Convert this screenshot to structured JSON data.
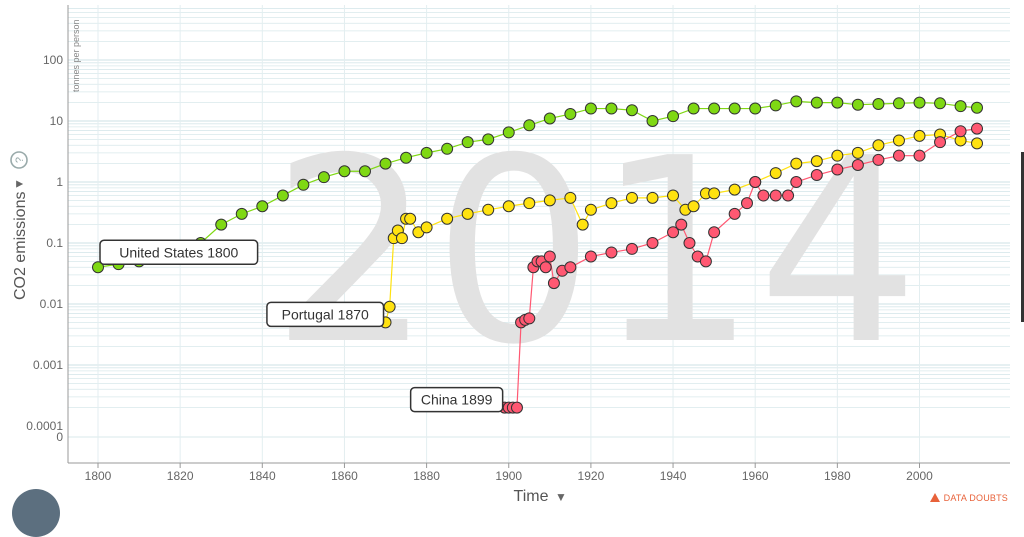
{
  "year_overlay": "2014",
  "y_axis": {
    "title": "CO2 emissions",
    "unit": "tonnes per person",
    "arrow": "▼",
    "help_icon": "question-circle-icon"
  },
  "x_axis": {
    "title": "Time",
    "arrow": "▼"
  },
  "data_doubts": "DATA DOUBTS",
  "colors": {
    "United States": "#7fd813",
    "Portugal": "#ffe210",
    "China": "#ff5872",
    "grid": "#cfe2e6",
    "axis": "#999999"
  },
  "chart_data": {
    "type": "scatter",
    "xlabel": "Time",
    "ylabel": "CO2 emissions",
    "yunit": "tonnes per person",
    "yscale": "log",
    "xlim": [
      1790,
      2018
    ],
    "x_ticks": [
      1800,
      1820,
      1840,
      1860,
      1880,
      1900,
      1920,
      1940,
      1960,
      1980,
      2000
    ],
    "y_ticks": [
      "100",
      "10",
      "1",
      "0.1",
      "0.01",
      "0.001",
      "0.0001",
      "0"
    ],
    "labels": [
      "United States 1800",
      "Portugal 1870",
      "China 1899"
    ],
    "series": [
      {
        "name": "United States",
        "color": "#7fd813",
        "points": [
          [
            1800,
            0.04
          ],
          [
            1805,
            0.045
          ],
          [
            1810,
            0.05
          ],
          [
            1815,
            0.06
          ],
          [
            1820,
            0.07
          ],
          [
            1825,
            0.1
          ],
          [
            1830,
            0.2
          ],
          [
            1835,
            0.3
          ],
          [
            1840,
            0.4
          ],
          [
            1845,
            0.6
          ],
          [
            1850,
            0.9
          ],
          [
            1855,
            1.2
          ],
          [
            1860,
            1.5
          ],
          [
            1865,
            1.5
          ],
          [
            1870,
            2.0
          ],
          [
            1875,
            2.5
          ],
          [
            1880,
            3.0
          ],
          [
            1885,
            3.5
          ],
          [
            1890,
            4.5
          ],
          [
            1895,
            5
          ],
          [
            1900,
            6.5
          ],
          [
            1905,
            8.5
          ],
          [
            1910,
            11
          ],
          [
            1915,
            13
          ],
          [
            1920,
            16
          ],
          [
            1925,
            16
          ],
          [
            1930,
            15
          ],
          [
            1935,
            10
          ],
          [
            1940,
            12
          ],
          [
            1945,
            16
          ],
          [
            1950,
            16
          ],
          [
            1955,
            16
          ],
          [
            1960,
            16
          ],
          [
            1965,
            18
          ],
          [
            1970,
            21
          ],
          [
            1975,
            20
          ],
          [
            1980,
            20
          ],
          [
            1985,
            18.5
          ],
          [
            1990,
            19
          ],
          [
            1995,
            19.5
          ],
          [
            2000,
            20
          ],
          [
            2005,
            19.5
          ],
          [
            2010,
            17.5
          ],
          [
            2014,
            16.5
          ]
        ]
      },
      {
        "name": "Portugal",
        "color": "#ffe210",
        "points": [
          [
            1870,
            0.005
          ],
          [
            1871,
            0.009
          ],
          [
            1872,
            0.12
          ],
          [
            1873,
            0.16
          ],
          [
            1874,
            0.12
          ],
          [
            1875,
            0.25
          ],
          [
            1876,
            0.25
          ],
          [
            1878,
            0.15
          ],
          [
            1880,
            0.18
          ],
          [
            1885,
            0.25
          ],
          [
            1890,
            0.3
          ],
          [
            1895,
            0.35
          ],
          [
            1900,
            0.4
          ],
          [
            1905,
            0.45
          ],
          [
            1910,
            0.5
          ],
          [
            1915,
            0.55
          ],
          [
            1918,
            0.2
          ],
          [
            1920,
            0.35
          ],
          [
            1925,
            0.45
          ],
          [
            1930,
            0.55
          ],
          [
            1935,
            0.55
          ],
          [
            1940,
            0.6
          ],
          [
            1943,
            0.35
          ],
          [
            1945,
            0.4
          ],
          [
            1948,
            0.65
          ],
          [
            1950,
            0.65
          ],
          [
            1955,
            0.75
          ],
          [
            1960,
            1.0
          ],
          [
            1965,
            1.4
          ],
          [
            1970,
            2.0
          ],
          [
            1975,
            2.2
          ],
          [
            1980,
            2.7
          ],
          [
            1985,
            3.0
          ],
          [
            1990,
            4.0
          ],
          [
            1995,
            4.8
          ],
          [
            2000,
            5.7
          ],
          [
            2005,
            6.0
          ],
          [
            2010,
            4.8
          ],
          [
            2014,
            4.3
          ]
        ]
      },
      {
        "name": "China",
        "color": "#ff5872",
        "points": [
          [
            1899,
            0.0002
          ],
          [
            1900,
            0.0002
          ],
          [
            1901,
            0.0002
          ],
          [
            1902,
            0.0002
          ],
          [
            1903,
            0.005
          ],
          [
            1904,
            0.0055
          ],
          [
            1905,
            0.0058
          ],
          [
            1906,
            0.04
          ],
          [
            1907,
            0.05
          ],
          [
            1908,
            0.05
          ],
          [
            1909,
            0.04
          ],
          [
            1910,
            0.06
          ],
          [
            1911,
            0.022
          ],
          [
            1913,
            0.035
          ],
          [
            1915,
            0.04
          ],
          [
            1920,
            0.06
          ],
          [
            1925,
            0.07
          ],
          [
            1930,
            0.08
          ],
          [
            1935,
            0.1
          ],
          [
            1940,
            0.15
          ],
          [
            1942,
            0.2
          ],
          [
            1944,
            0.1
          ],
          [
            1946,
            0.06
          ],
          [
            1948,
            0.05
          ],
          [
            1950,
            0.15
          ],
          [
            1955,
            0.3
          ],
          [
            1958,
            0.45
          ],
          [
            1960,
            1.0
          ],
          [
            1962,
            0.6
          ],
          [
            1965,
            0.6
          ],
          [
            1968,
            0.6
          ],
          [
            1970,
            1.0
          ],
          [
            1975,
            1.3
          ],
          [
            1980,
            1.6
          ],
          [
            1985,
            1.9
          ],
          [
            1990,
            2.3
          ],
          [
            1995,
            2.7
          ],
          [
            2000,
            2.7
          ],
          [
            2005,
            4.5
          ],
          [
            2010,
            6.8
          ],
          [
            2014,
            7.5
          ]
        ]
      }
    ]
  }
}
